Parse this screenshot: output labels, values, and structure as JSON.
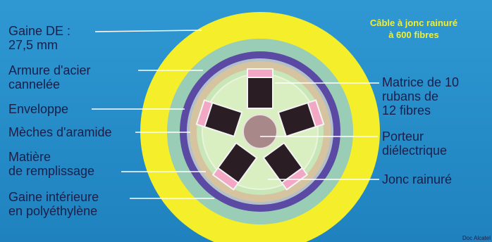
{
  "title": {
    "line1": "Câble à jonc rainuré",
    "line2": "à 600 fibres"
  },
  "labels_left": [
    {
      "id": "gaine-de",
      "lines": [
        "Gaine DE :",
        "27,5 mm"
      ]
    },
    {
      "id": "armure",
      "lines": [
        "Armure d'acier",
        "cannelée"
      ]
    },
    {
      "id": "enveloppe",
      "lines": [
        "Enveloppe"
      ]
    },
    {
      "id": "meches",
      "lines": [
        "Mèches d'aramide"
      ]
    },
    {
      "id": "matiere",
      "lines": [
        "Matière",
        "de remplissage"
      ]
    },
    {
      "id": "gaine-int",
      "lines": [
        "Gaine intérieure",
        "en polyéthylène"
      ]
    }
  ],
  "labels_right": [
    {
      "id": "matrice",
      "lines": [
        "Matrice de 10",
        "rubans de",
        "12 fibres"
      ]
    },
    {
      "id": "porteur",
      "lines": [
        "Porteur",
        "diélectrique"
      ]
    },
    {
      "id": "jonc",
      "lines": [
        "Jonc rainuré"
      ]
    }
  ],
  "credit": "Doc Alcatel",
  "colors": {
    "background": "#2a93cf",
    "outer_sheath": "#f5ee2a",
    "armour": "#99cdb6",
    "envelope": "#5b4aa3",
    "aramid": "#b3c0cc",
    "filling": "#d5c49f",
    "inner_sheath": "#c9e6b8",
    "core": "#d9efc2",
    "ribbon": "#2a1e24",
    "ribbon_top": "#f2a8c4",
    "carrier": "#a88888",
    "ink": "#1a1f4a"
  }
}
